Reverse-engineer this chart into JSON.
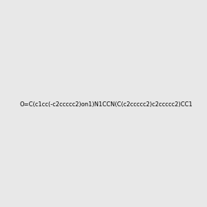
{
  "smiles": "O=C(c1cc(-c2ccccc2)on1)N1CCN(C(c2ccccc2)c2ccccc2)CC1",
  "image_size": 300,
  "background_color": "#e8e8e8",
  "bond_color": "#000000",
  "atom_colors": {
    "N": "#0000ff",
    "O": "#ff0000"
  },
  "title": ""
}
